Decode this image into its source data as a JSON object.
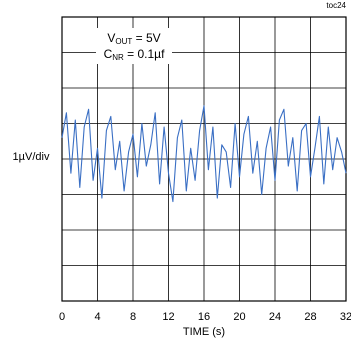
{
  "figure_id": "toc24",
  "chart_data": {
    "type": "line",
    "xlabel": "TIME (s)",
    "ylabel": "1µV/div",
    "xlim": [
      0,
      32
    ],
    "ylim": [
      -4,
      4
    ],
    "x_ticks": [
      "0",
      "4",
      "8",
      "12",
      "16",
      "20",
      "24",
      "28",
      "32"
    ],
    "grid": true,
    "series_color": "#3a6fc4",
    "annotation": {
      "line1_main": "V",
      "line1_sub": "OUT",
      "line1_value": " = 5V",
      "line2_main": "C",
      "line2_sub": "NR",
      "line2_value": " = 0.1µf"
    },
    "series": [
      {
        "x": [
          0,
          0.5,
          1,
          1.5,
          2,
          2.5,
          3,
          3.5,
          4,
          4.5,
          5,
          5.5,
          6,
          6.5,
          7,
          7.5,
          8,
          8.5,
          9,
          9.5,
          10,
          10.5,
          11,
          11.5,
          12,
          12.5,
          13,
          13.5,
          14,
          14.5,
          15,
          15.5,
          16,
          16.5,
          17,
          17.5,
          18,
          18.5,
          19,
          19.5,
          20,
          20.5,
          21,
          21.5,
          22,
          22.5,
          23,
          23.5,
          24,
          24.5,
          25,
          25.5,
          26,
          26.5,
          27,
          27.5,
          28,
          28.5,
          29,
          29.5,
          30,
          30.5,
          31,
          31.5,
          32
        ],
        "y": [
          0.6,
          1.3,
          -0.4,
          1.1,
          -0.8,
          0.9,
          1.4,
          -0.6,
          0.3,
          -1.1,
          0.8,
          1.2,
          -0.3,
          0.5,
          -0.9,
          0.2,
          0.7,
          -0.5,
          1.0,
          -0.2,
          0.4,
          1.3,
          -0.7,
          0.9,
          -0.4,
          -1.2,
          0.6,
          1.1,
          -0.9,
          0.3,
          -0.6,
          0.8,
          1.5,
          -0.3,
          0.9,
          -1.1,
          0.4,
          0.2,
          -0.8,
          1.0,
          -0.5,
          0.7,
          1.2,
          -0.4,
          0.5,
          -1.0,
          0.3,
          0.9,
          -0.6,
          1.1,
          1.4,
          -0.2,
          0.6,
          -0.9,
          0.8,
          1.0,
          -0.5,
          0.3,
          1.2,
          -0.7,
          0.9,
          -0.3,
          0.6,
          0.2,
          -0.4
        ]
      }
    ]
  }
}
